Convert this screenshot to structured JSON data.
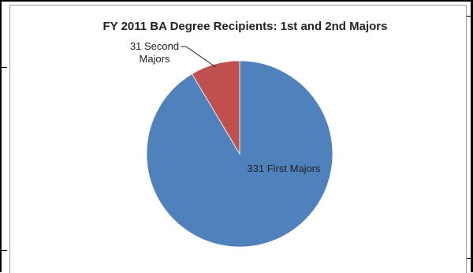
{
  "chart_data": {
    "type": "pie",
    "title": "FY 2011 BA Degree Recipients: 1st and 2nd Majors",
    "slices": [
      {
        "label": "331 First Majors",
        "value": 331,
        "color": "#4F81BD"
      },
      {
        "label_lines": [
          "31 Second",
          "Majors"
        ],
        "value": 31,
        "color": "#C0504D"
      }
    ],
    "legend": "none"
  }
}
